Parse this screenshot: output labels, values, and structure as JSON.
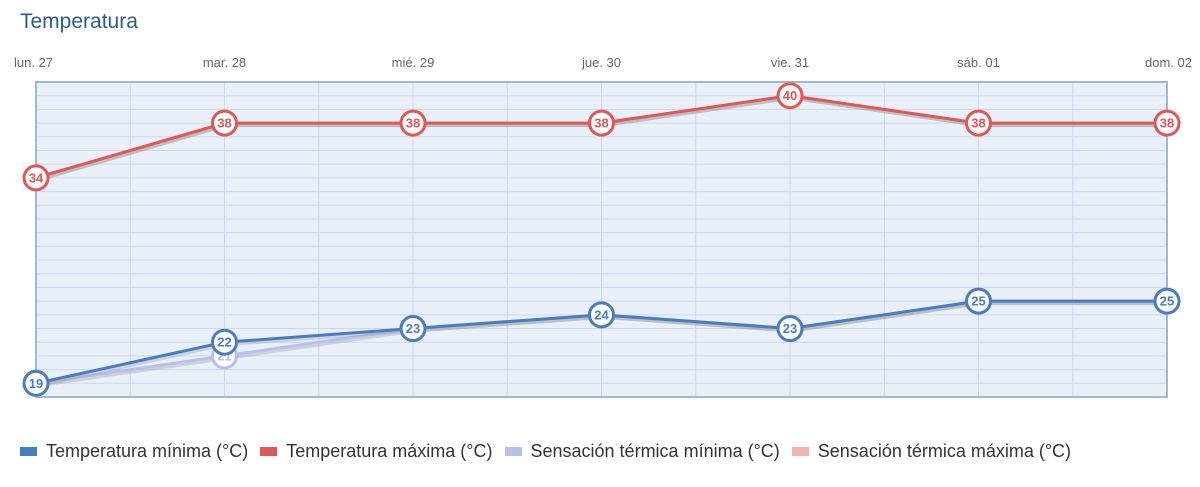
{
  "chart_data": {
    "type": "line",
    "title": "Temperatura",
    "categories": [
      "lun. 27",
      "mar. 28",
      "mié. 29",
      "jue. 30",
      "vie. 31",
      "sáb. 01",
      "dom. 02"
    ],
    "ylim": [
      18,
      41
    ],
    "grid": true,
    "legend_position": "bottom",
    "series": [
      {
        "name": "Temperatura mínima (°C)",
        "values": [
          19,
          22,
          23,
          24,
          23,
          25,
          25
        ],
        "color": "#4a7cc0",
        "labeled": true
      },
      {
        "name": "Temperatura máxima (°C)",
        "values": [
          34,
          38,
          38,
          38,
          40,
          38,
          38
        ],
        "color": "#e05757",
        "labeled": true
      },
      {
        "name": "Sensación térmica mínima (°C)",
        "values": [
          19,
          21,
          23,
          24,
          23,
          25,
          25
        ],
        "color": "#b7c0ec",
        "labeled": true
      },
      {
        "name": "Sensación térmica máxima (°C)",
        "values": [
          34,
          38,
          38,
          38,
          40,
          38,
          38
        ],
        "color": "#f1b2b6",
        "labeled": false
      }
    ]
  }
}
